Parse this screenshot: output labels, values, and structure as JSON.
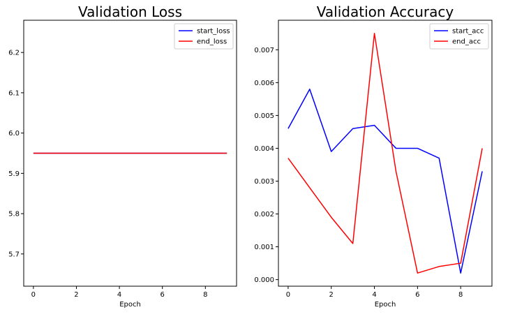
{
  "chart_data": [
    {
      "type": "line",
      "title": "Validation Loss",
      "xlabel": "Epoch",
      "ylabel": "",
      "x": [
        0,
        1,
        2,
        3,
        4,
        5,
        6,
        7,
        8,
        9
      ],
      "series": [
        {
          "name": "start_loss",
          "color": "#0000ff",
          "values": [
            5.95,
            5.95,
            5.95,
            5.95,
            5.95,
            5.95,
            5.95,
            5.95,
            5.95,
            5.95
          ]
        },
        {
          "name": "end_loss",
          "color": "#ff0000",
          "values": [
            5.95,
            5.95,
            5.95,
            5.95,
            5.95,
            5.95,
            5.95,
            5.95,
            5.95,
            5.95
          ]
        }
      ],
      "xlim": [
        -0.45,
        9.45
      ],
      "ylim": [
        5.62,
        6.28
      ],
      "xticks": [
        0,
        2,
        4,
        6,
        8
      ],
      "yticks": [
        5.7,
        5.8,
        5.9,
        6.0,
        6.1,
        6.2
      ],
      "ytick_labels": [
        "5.7",
        "5.8",
        "5.9",
        "6.0",
        "6.1",
        "6.2"
      ],
      "legend": "top-right",
      "grid": false
    },
    {
      "type": "line",
      "title": "Validation Accuracy",
      "xlabel": "Epoch",
      "ylabel": "",
      "x": [
        0,
        1,
        2,
        3,
        4,
        5,
        6,
        7,
        8,
        9
      ],
      "series": [
        {
          "name": "start_acc",
          "color": "#0000ff",
          "values": [
            0.0046,
            0.0058,
            0.0039,
            0.0046,
            0.0047,
            0.004,
            0.004,
            0.0037,
            0.0002,
            0.0033
          ]
        },
        {
          "name": "end_acc",
          "color": "#ff0000",
          "values": [
            0.0037,
            0.0028,
            0.0019,
            0.0011,
            0.0075,
            0.0033,
            0.0002,
            0.0004,
            0.0005,
            0.004
          ]
        }
      ],
      "xlim": [
        -0.45,
        9.45
      ],
      "ylim": [
        -0.0002,
        0.0079
      ],
      "xticks": [
        0,
        2,
        4,
        6,
        8
      ],
      "yticks": [
        0,
        0.001,
        0.002,
        0.003,
        0.004,
        0.005,
        0.006,
        0.007
      ],
      "ytick_labels": [
        "0.000",
        "0.001",
        "0.002",
        "0.003",
        "0.004",
        "0.005",
        "0.006",
        "0.007"
      ],
      "legend": "top-right",
      "grid": false
    }
  ]
}
